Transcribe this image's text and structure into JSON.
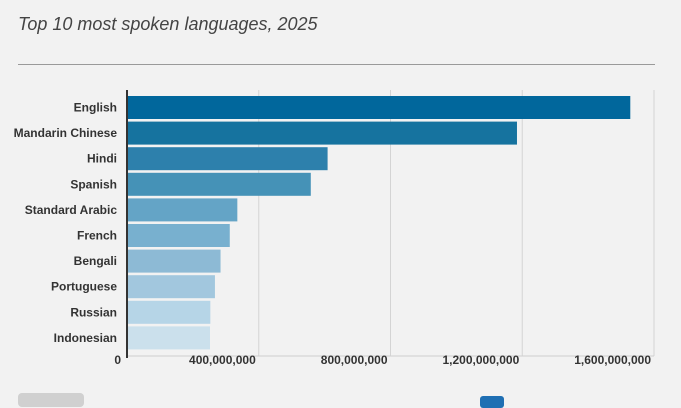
{
  "page": {
    "title": "Top 10 most spoken languages, 2025"
  },
  "chart_data": {
    "type": "bar",
    "orientation": "horizontal",
    "title": "Top 10 most spoken languages, 2025",
    "categories": [
      "English",
      "Mandarin Chinese",
      "Hindi",
      "Spanish",
      "Standard Arabic",
      "French",
      "Bengali",
      "Portuguese",
      "Russian",
      "Indonesian"
    ],
    "values": [
      1528000000,
      1184000000,
      609000000,
      558000000,
      335000000,
      312000000,
      284000000,
      267000000,
      253000000,
      252000000
    ],
    "xlim": [
      0,
      1600000000
    ],
    "x_ticks": [
      0,
      400000000,
      800000000,
      1200000000,
      1600000000
    ],
    "x_tick_labels": [
      "0",
      "400,000,000",
      "800,000,000",
      "1,200,000,000",
      "1,600,000,000"
    ],
    "grid": true,
    "colors": [
      "#01679c",
      "#16739f",
      "#2d80ac",
      "#4592b7",
      "#64a4c6",
      "#78b0cf",
      "#8dbad5",
      "#a2c7de",
      "#b6d5e7",
      "#cbe0ec"
    ]
  }
}
